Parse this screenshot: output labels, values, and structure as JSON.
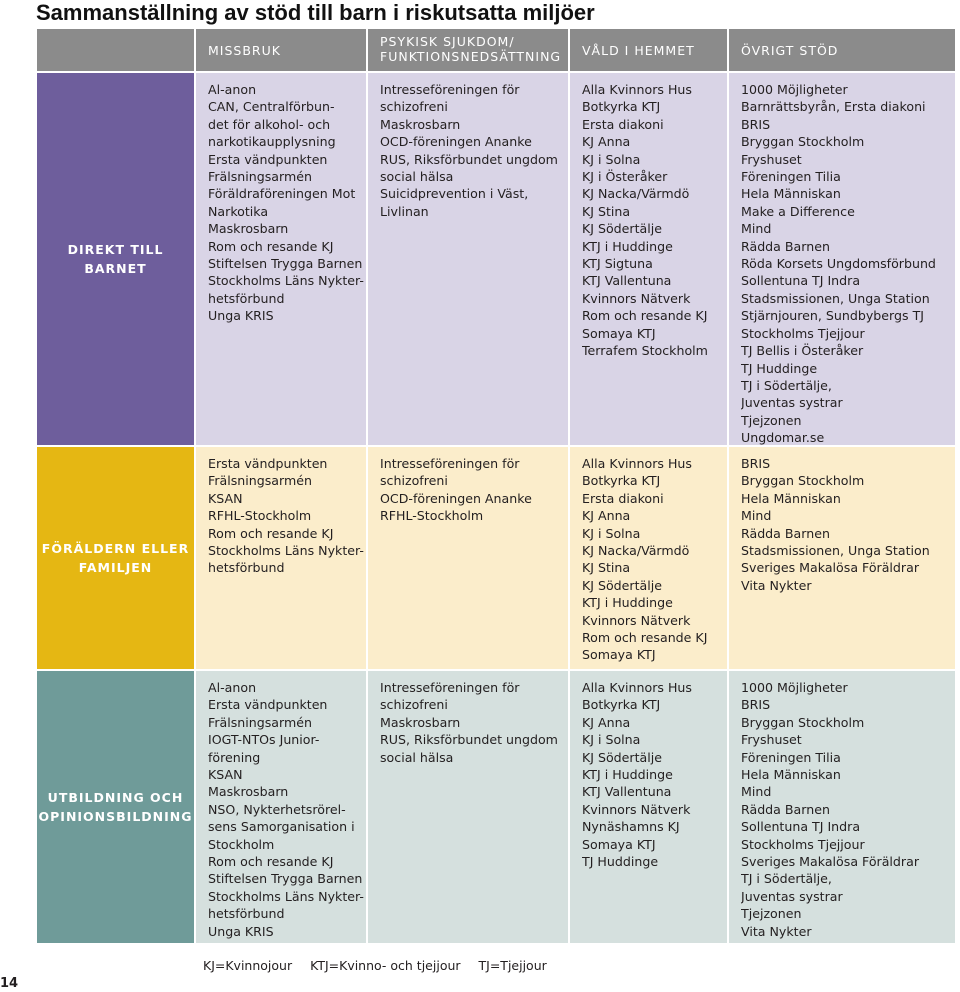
{
  "title": "Sammanställning av stöd till barn i riskutsatta miljöer",
  "columns": [
    {
      "lines": [
        "MISSBRUK"
      ]
    },
    {
      "lines": [
        "PSYKISK SJUKDOM/",
        "FUNKTIONSNEDSÄTTNING"
      ]
    },
    {
      "lines": [
        "VÅLD I HEMMET"
      ]
    },
    {
      "lines": [
        "ÖVRIGT STÖD"
      ]
    }
  ],
  "rows": [
    {
      "label": [
        "DIREKT TILL",
        "BARNET"
      ],
      "cells": [
        [
          "Al-anon",
          "CAN, Centralförbun-",
          "det för alkohol- och",
          "narkotikaupplysning",
          "Ersta vändpunkten",
          "Frälsningsarmén",
          "Föräldraföreningen Mot",
          "Narkotika",
          "Maskrosbarn",
          "Rom och resande KJ",
          "Stiftelsen Trygga Barnen",
          "Stockholms Läns Nykter-",
          "hetsförbund",
          "Unga KRIS"
        ],
        [
          "Intresseföreningen för",
          "schizofreni",
          "Maskrosbarn",
          "OCD-föreningen Ananke",
          "RUS, Riksförbundet ungdom",
          "social hälsa",
          "Suicidprevention i Väst,",
          "Livlinan"
        ],
        [
          "Alla Kvinnors Hus",
          "Botkyrka KTJ",
          "Ersta diakoni",
          "KJ Anna",
          "KJ i Solna",
          "KJ i Österåker",
          "KJ Nacka/Värmdö",
          "KJ Stina",
          "KJ Södertälje",
          "KTJ i Huddinge",
          "KTJ Sigtuna",
          "KTJ Vallentuna",
          "Kvinnors Nätverk",
          "Rom och resande KJ",
          "Somaya KTJ",
          "Terrafem Stockholm"
        ],
        [
          "1000 Möjligheter",
          "Barnrättsbyrån, Ersta diakoni",
          "BRIS",
          "Bryggan Stockholm",
          "Fryshuset",
          "Föreningen Tilia",
          "Hela Människan",
          "Make a Difference",
          "Mind",
          "Rädda Barnen",
          "Röda Korsets Ungdomsförbund",
          "Sollentuna TJ Indra",
          "Stadsmissionen, Unga Station",
          "Stjärnjouren, Sundbybergs TJ",
          "Stockholms Tjejjour",
          "TJ Bellis i Österåker",
          "TJ Huddinge",
          "TJ i Södertälje,",
          "Juventas systrar",
          "Tjejzonen",
          "Ungdomar.se"
        ]
      ]
    },
    {
      "label": [
        "FÖRÄLDERN ELLER",
        "FAMILJEN"
      ],
      "cells": [
        [
          "Ersta vändpunkten",
          "Frälsningsarmén",
          "KSAN",
          "RFHL-Stockholm",
          "Rom och resande KJ",
          "Stockholms Läns Nykter-",
          "hetsförbund"
        ],
        [
          "Intresseföreningen för",
          "schizofreni",
          "OCD-föreningen Ananke",
          "RFHL-Stockholm"
        ],
        [
          "Alla Kvinnors Hus",
          "Botkyrka KTJ",
          "Ersta diakoni",
          "KJ Anna",
          "KJ i Solna",
          "KJ Nacka/Värmdö",
          "KJ Stina",
          "KJ Södertälje",
          "KTJ i Huddinge",
          "Kvinnors Nätverk",
          "Rom och resande KJ",
          "Somaya KTJ"
        ],
        [
          "BRIS",
          "Bryggan Stockholm",
          "Hela Människan",
          "Mind",
          "Rädda Barnen",
          "Stadsmissionen, Unga Station",
          "Sveriges Makalösa Föräldrar",
          "Vita Nykter"
        ]
      ]
    },
    {
      "label": [
        "UTBILDNING OCH",
        "OPINIONSBILDNING"
      ],
      "cells": [
        [
          "Al-anon",
          "Ersta vändpunkten",
          "Frälsningsarmén",
          "IOGT-NTOs Junior-",
          "förening",
          "KSAN",
          "Maskrosbarn",
          "NSO, Nykterhetsrörel-",
          "sens Samorganisation i",
          "Stockholm",
          "Rom och resande KJ",
          "Stiftelsen Trygga Barnen",
          "Stockholms Läns Nykter-",
          "hetsförbund",
          "Unga KRIS"
        ],
        [
          "Intresseföreningen för",
          "schizofreni",
          "Maskrosbarn",
          "RUS, Riksförbundet ungdom",
          "social hälsa"
        ],
        [
          "Alla Kvinnors Hus",
          "Botkyrka KTJ",
          "KJ Anna",
          "KJ i Solna",
          "KJ Södertälje",
          "KTJ i Huddinge",
          "KTJ Vallentuna",
          "Kvinnors Nätverk",
          "Nynäshamns KJ",
          "Somaya KTJ",
          "TJ Huddinge"
        ],
        [
          "1000 Möjligheter",
          "BRIS",
          "Bryggan Stockholm",
          "Fryshuset",
          "Föreningen Tilia",
          "Hela Människan",
          "Mind",
          "Rädda Barnen",
          "Sollentuna TJ Indra",
          "Stockholms Tjejjour",
          "Sveriges Makalösa Föräldrar",
          "TJ i Södertälje,",
          "Juventas systrar",
          "Tjejzonen",
          "Vita Nykter"
        ]
      ]
    }
  ],
  "footer": [
    "KJ=Kvinnojour",
    "KTJ=Kvinno- och tjejjour",
    "TJ=Tjejjour"
  ],
  "page_number": "14",
  "colors": {
    "header_bg": "#8b8b8b",
    "row1_label": "#6e5e9c",
    "row1_cell": "#d9d4e6",
    "row2_label": "#e5b713",
    "row2_cell": "#fbedcb",
    "row3_label": "#6f9b99",
    "row3_cell": "#d5e0de"
  }
}
